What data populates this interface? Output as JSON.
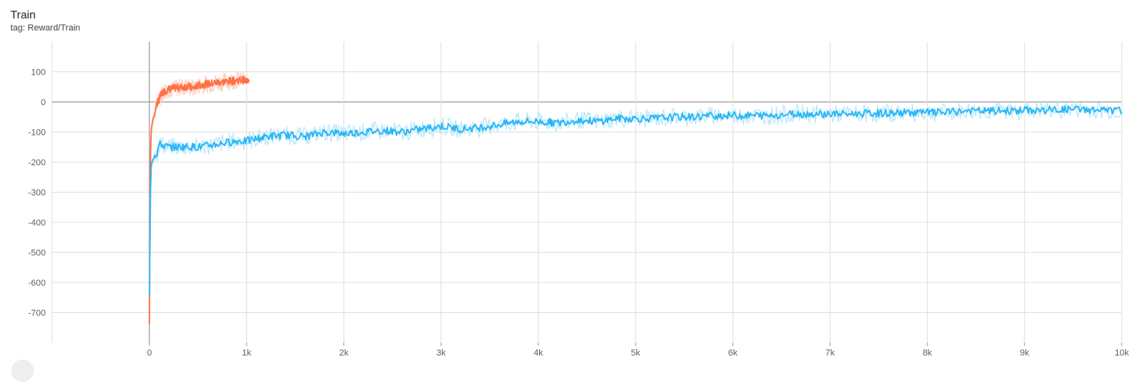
{
  "card": {
    "title": "Train",
    "tag": "tag: Reward/Train"
  },
  "colors": {
    "grid": "#e0e0e0",
    "zero_line": "#9e9e9e",
    "tick_text": "#616161"
  },
  "chart_data": {
    "type": "line",
    "title": "Train",
    "subtitle": "tag: Reward/Train",
    "xlim": [
      -1000,
      10000
    ],
    "ylim": [
      -800,
      200
    ],
    "x_ticks": [
      {
        "value": 0,
        "label": "0"
      },
      {
        "value": 1000,
        "label": "1k"
      },
      {
        "value": 2000,
        "label": "2k"
      },
      {
        "value": 3000,
        "label": "3k"
      },
      {
        "value": 4000,
        "label": "4k"
      },
      {
        "value": 5000,
        "label": "5k"
      },
      {
        "value": 6000,
        "label": "6k"
      },
      {
        "value": 7000,
        "label": "7k"
      },
      {
        "value": 8000,
        "label": "8k"
      },
      {
        "value": 9000,
        "label": "9k"
      },
      {
        "value": 10000,
        "label": "10k"
      }
    ],
    "y_ticks": [
      {
        "value": 100,
        "label": "100"
      },
      {
        "value": 0,
        "label": "0"
      },
      {
        "value": -100,
        "label": "-100"
      },
      {
        "value": -200,
        "label": "-200"
      },
      {
        "value": -300,
        "label": "-300"
      },
      {
        "value": -400,
        "label": "-400"
      },
      {
        "value": -500,
        "label": "-500"
      },
      {
        "value": -600,
        "label": "-600"
      },
      {
        "value": -700,
        "label": "-700"
      }
    ],
    "grid": true,
    "series": [
      {
        "color": "#ff7043",
        "raw_color": "#ffccbc",
        "x": [
          0,
          5,
          10,
          15,
          20,
          30,
          40,
          50,
          60,
          70,
          80,
          100,
          120,
          150,
          180,
          200,
          250,
          300,
          350,
          400,
          450,
          500,
          550,
          600,
          650,
          700,
          750,
          800,
          850,
          900,
          950,
          1000
        ],
        "y": [
          -740,
          -400,
          -200,
          -130,
          -90,
          -70,
          -55,
          -45,
          -30,
          -15,
          -5,
          10,
          25,
          35,
          40,
          42,
          45,
          48,
          50,
          52,
          45,
          55,
          58,
          60,
          62,
          65,
          66,
          68,
          70,
          72,
          73,
          70
        ],
        "marker": {
          "x": 1000,
          "y": 70
        }
      },
      {
        "color": "#29b6f6",
        "raw_color": "#b3e5fc",
        "x": [
          0,
          10,
          20,
          40,
          60,
          80,
          100,
          150,
          200,
          300,
          400,
          500,
          600,
          700,
          800,
          900,
          1000,
          1200,
          1400,
          1600,
          1800,
          2000,
          2200,
          2400,
          2600,
          2800,
          3000,
          3200,
          3400,
          3600,
          3800,
          4000,
          4200,
          4400,
          4600,
          4800,
          5000,
          5200,
          5400,
          5600,
          5800,
          6000,
          6200,
          6400,
          6600,
          6800,
          7000,
          7200,
          7400,
          7600,
          7800,
          8000,
          8200,
          8400,
          8600,
          8800,
          9000,
          9200,
          9400,
          9600,
          9800,
          10000
        ],
        "y": [
          -650,
          -300,
          -200,
          -180,
          -175,
          -170,
          -140,
          -145,
          -150,
          -150,
          -148,
          -150,
          -145,
          -140,
          -135,
          -130,
          -130,
          -115,
          -110,
          -115,
          -100,
          -105,
          -100,
          -95,
          -100,
          -90,
          -80,
          -90,
          -85,
          -75,
          -65,
          -65,
          -70,
          -60,
          -65,
          -55,
          -55,
          -55,
          -50,
          -50,
          -45,
          -45,
          -45,
          -45,
          -40,
          -40,
          -40,
          -40,
          -38,
          -38,
          -35,
          -35,
          -35,
          -30,
          -30,
          -30,
          -28,
          -28,
          -25,
          -25,
          -28,
          -30
        ],
        "marker": {
          "x": 4120,
          "y": -65
        }
      }
    ]
  }
}
